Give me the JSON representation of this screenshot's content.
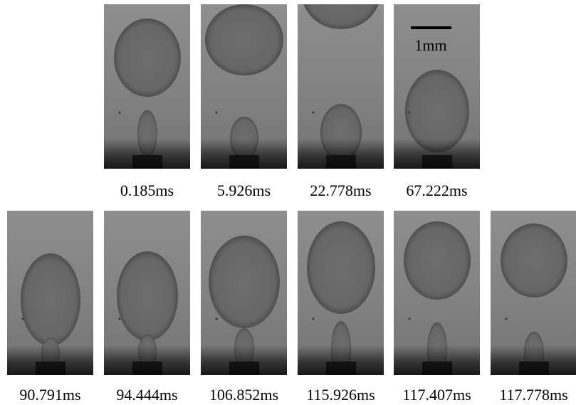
{
  "panels": [
    {
      "time": "0.185ms"
    },
    {
      "time": "5.926ms"
    },
    {
      "time": "22.778ms"
    },
    {
      "time": "67.222ms"
    },
    {
      "time": "90.791ms"
    },
    {
      "time": "94.444ms"
    },
    {
      "time": "106.852ms"
    },
    {
      "time": "115.926ms"
    },
    {
      "time": "117.407ms"
    },
    {
      "time": "117.778ms"
    }
  ],
  "scale_bar": {
    "label": "1mm"
  }
}
